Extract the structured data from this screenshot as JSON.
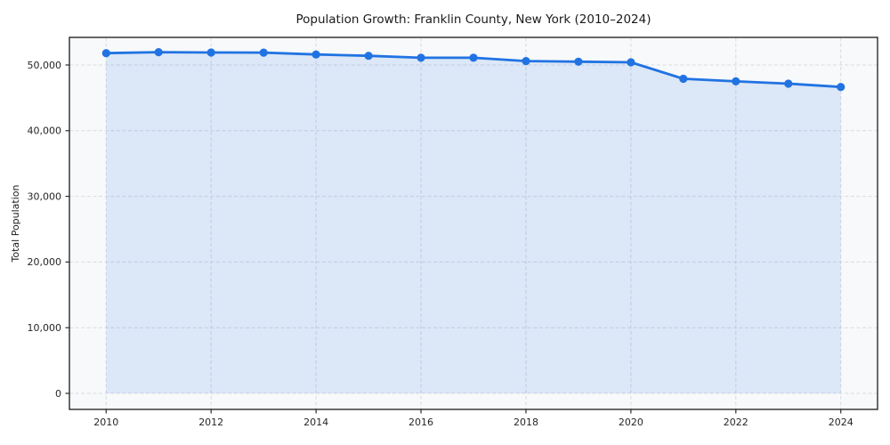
{
  "chart_data": {
    "type": "area",
    "title": "Population Growth: Franklin County, New York (2010–2024)",
    "xlabel": "",
    "ylabel": "Total Population",
    "x": [
      2010,
      2011,
      2012,
      2013,
      2014,
      2015,
      2016,
      2017,
      2018,
      2019,
      2020,
      2021,
      2022,
      2023,
      2024
    ],
    "values": [
      51800,
      51950,
      51900,
      51880,
      51600,
      51400,
      51100,
      51100,
      50600,
      50500,
      50400,
      47900,
      47500,
      47150,
      46650
    ],
    "xlim": [
      2009.3,
      2024.7
    ],
    "ylim": [
      -2440,
      54200
    ],
    "x_ticks": [
      2010,
      2012,
      2014,
      2016,
      2018,
      2020,
      2022,
      2024
    ],
    "y_ticks": [
      0,
      10000,
      20000,
      30000,
      40000,
      50000
    ],
    "grid": true,
    "grid_style": "dashed",
    "legend": false,
    "area_baseline": 0,
    "colors": {
      "line": "#2173e2",
      "marker": "#2173e2",
      "fill": "#2173e2",
      "fill_opacity": 0.13,
      "plot_background": "#f8f9fb",
      "grid": "#d7dadf",
      "spine": "#2b2b2b",
      "text": "#1a1a1a"
    }
  }
}
